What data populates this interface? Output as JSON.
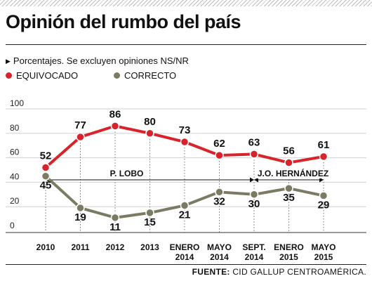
{
  "title": "Opinión del rumbo del país",
  "subtitle": "Porcentajes. Se excluyen opiniones NS/NR",
  "legend": [
    {
      "label": "EQUIVOCADO",
      "color": "#d9232a"
    },
    {
      "label": "CORRECTO",
      "color": "#7b7a62"
    }
  ],
  "source": {
    "label": "FUENTE:",
    "text": "CID GALLUP CENTROAMÉRICA."
  },
  "chart_data": {
    "type": "line",
    "categories": [
      [
        "2010"
      ],
      [
        "2011"
      ],
      [
        "2012"
      ],
      [
        "2013"
      ],
      [
        "ENERO",
        "2014"
      ],
      [
        "MAYO",
        "2014"
      ],
      [
        "SEPT.",
        "2014"
      ],
      [
        "ENERO",
        "2015"
      ],
      [
        "MAYO",
        "2015"
      ]
    ],
    "series": [
      {
        "name": "EQUIVOCADO",
        "color": "#d9232a",
        "values": [
          52,
          77,
          86,
          80,
          73,
          62,
          63,
          56,
          61
        ]
      },
      {
        "name": "CORRECTO",
        "color": "#7b7a62",
        "values": [
          45,
          19,
          11,
          15,
          21,
          32,
          30,
          35,
          29
        ]
      }
    ],
    "ylim": [
      0,
      100
    ],
    "yticks": [
      0,
      20,
      40,
      60,
      80,
      100
    ],
    "grid": true,
    "annotations": [
      {
        "text": "P. LOBO",
        "from_index": 0,
        "to_index": 6
      },
      {
        "text": "J.O. HERNÁNDEZ",
        "from_index": 6,
        "to_index": 8
      }
    ]
  }
}
